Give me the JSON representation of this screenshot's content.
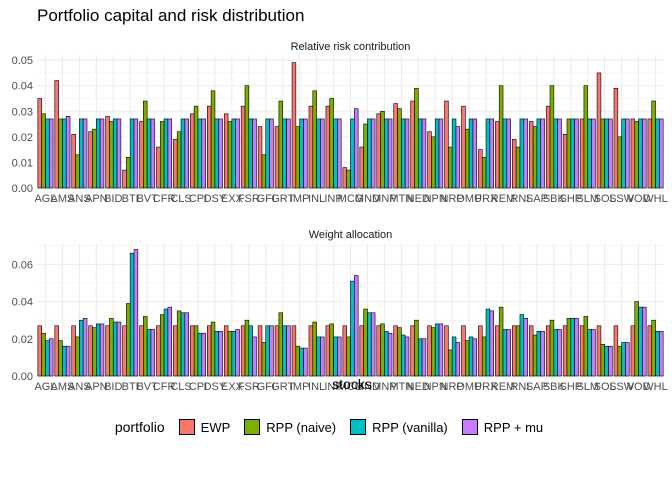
{
  "title": "Portfolio capital and risk distribution",
  "legend": {
    "title": "portfolio",
    "items": [
      {
        "name": "EWP",
        "color": "#F8766D"
      },
      {
        "name": "RPP (naive)",
        "color": "#7CAE00"
      },
      {
        "name": "RPP (vanilla)",
        "color": "#00BFC4"
      },
      {
        "name": "RPP + mu",
        "color": "#C77CFF"
      }
    ]
  },
  "chart_data": [
    {
      "type": "bar",
      "title": "Relative risk contribution",
      "xlabel": "",
      "ylabel": "",
      "ylim": [
        0,
        0.052
      ],
      "yticks": [
        "0.00",
        "0.01",
        "0.02",
        "0.03",
        "0.04",
        "0.05"
      ],
      "ytick_values": [
        0,
        0.01,
        0.02,
        0.03,
        0.04,
        0.05
      ],
      "grid": true,
      "categories": [
        "AGL",
        "AMS",
        "ANS",
        "APN",
        "BID",
        "BTI",
        "BVT",
        "CFR",
        "CLS",
        "CPI",
        "DSY",
        "EXX",
        "FSR",
        "GFI",
        "GRT",
        "IMP",
        "INL",
        "INP",
        "MCG",
        "MND",
        "MNP",
        "MTN",
        "NED",
        "NPN",
        "NRP",
        "OMU",
        "PRX",
        "REM",
        "RNI",
        "SAP",
        "SBK",
        "SHP",
        "SLM",
        "SOL",
        "SSW",
        "VOD",
        "WHL"
      ],
      "series": [
        {
          "name": "EWP",
          "values": [
            0.035,
            0.042,
            0.021,
            0.022,
            0.028,
            0.007,
            0.026,
            0.016,
            0.019,
            0.029,
            0.032,
            0.029,
            0.032,
            0.024,
            0.024,
            0.049,
            0.032,
            0.032,
            0.008,
            0.016,
            0.029,
            0.033,
            0.034,
            0.022,
            0.034,
            0.032,
            0.015,
            0.026,
            0.019,
            0.026,
            0.032,
            0.021,
            0.027,
            0.045,
            0.039,
            0.027,
            0.027
          ]
        },
        {
          "name": "RPP (naive)",
          "values": [
            0.029,
            0.027,
            0.013,
            0.023,
            0.026,
            0.012,
            0.034,
            0.026,
            0.022,
            0.032,
            0.038,
            0.026,
            0.04,
            0.013,
            0.034,
            0.024,
            0.038,
            0.035,
            0.007,
            0.025,
            0.03,
            0.031,
            0.039,
            0.02,
            0.016,
            0.023,
            0.012,
            0.04,
            0.016,
            0.024,
            0.04,
            0.027,
            0.04,
            0.027,
            0.02,
            0.026,
            0.034
          ]
        },
        {
          "name": "RPP (vanilla)",
          "values": [
            0.027,
            0.027,
            0.027,
            0.027,
            0.027,
            0.027,
            0.027,
            0.027,
            0.027,
            0.027,
            0.027,
            0.027,
            0.027,
            0.027,
            0.027,
            0.027,
            0.027,
            0.027,
            0.027,
            0.027,
            0.027,
            0.027,
            0.027,
            0.027,
            0.027,
            0.027,
            0.027,
            0.027,
            0.027,
            0.027,
            0.027,
            0.027,
            0.027,
            0.027,
            0.027,
            0.027,
            0.027
          ]
        },
        {
          "name": "RPP + mu",
          "values": [
            0.027,
            0.028,
            0.027,
            0.027,
            0.027,
            0.027,
            0.027,
            0.027,
            0.027,
            0.027,
            0.027,
            0.027,
            0.027,
            0.027,
            0.027,
            0.027,
            0.027,
            0.027,
            0.031,
            0.027,
            0.027,
            0.027,
            0.027,
            0.027,
            0.024,
            0.027,
            0.027,
            0.027,
            0.027,
            0.027,
            0.027,
            0.027,
            0.027,
            0.027,
            0.027,
            0.027,
            0.027
          ]
        }
      ]
    },
    {
      "type": "bar",
      "title": "Weight allocation",
      "xlabel": "stocks",
      "ylabel": "",
      "ylim": [
        0,
        0.0715
      ],
      "yticks": [
        "0.00",
        "0.02",
        "0.04",
        "0.06"
      ],
      "ytick_values": [
        0,
        0.02,
        0.04,
        0.06
      ],
      "grid": true,
      "categories": [
        "AGL",
        "AMS",
        "ANS",
        "APN",
        "BID",
        "BTI",
        "BVT",
        "CFR",
        "CLS",
        "CPI",
        "DSY",
        "EXX",
        "FSR",
        "GFI",
        "GRT",
        "IMP",
        "INL",
        "INP",
        "MCG",
        "MND",
        "MNP",
        "MTN",
        "NED",
        "NPN",
        "NRP",
        "OMU",
        "PRX",
        "REM",
        "RNI",
        "SAP",
        "SBK",
        "SHP",
        "SLM",
        "SOL",
        "SSW",
        "VOD",
        "WHL"
      ],
      "series": [
        {
          "name": "EWP",
          "values": [
            0.027,
            0.027,
            0.027,
            0.027,
            0.027,
            0.027,
            0.027,
            0.027,
            0.027,
            0.027,
            0.027,
            0.027,
            0.027,
            0.027,
            0.027,
            0.027,
            0.027,
            0.027,
            0.027,
            0.027,
            0.027,
            0.027,
            0.027,
            0.027,
            0.027,
            0.027,
            0.027,
            0.027,
            0.027,
            0.027,
            0.027,
            0.027,
            0.027,
            0.027,
            0.027,
            0.027,
            0.027
          ]
        },
        {
          "name": "RPP (naive)",
          "values": [
            0.023,
            0.019,
            0.021,
            0.026,
            0.031,
            0.039,
            0.032,
            0.033,
            0.035,
            0.027,
            0.029,
            0.024,
            0.03,
            0.018,
            0.034,
            0.016,
            0.029,
            0.028,
            0.021,
            0.036,
            0.028,
            0.026,
            0.03,
            0.026,
            0.014,
            0.019,
            0.021,
            0.037,
            0.027,
            0.022,
            0.03,
            0.031,
            0.032,
            0.017,
            0.016,
            0.04,
            0.03
          ]
        },
        {
          "name": "RPP (vanilla)",
          "values": [
            0.019,
            0.016,
            0.03,
            0.028,
            0.029,
            0.066,
            0.025,
            0.036,
            0.034,
            0.023,
            0.024,
            0.024,
            0.027,
            0.027,
            0.027,
            0.015,
            0.021,
            0.021,
            0.051,
            0.034,
            0.024,
            0.022,
            0.02,
            0.028,
            0.021,
            0.021,
            0.036,
            0.025,
            0.033,
            0.024,
            0.025,
            0.031,
            0.025,
            0.016,
            0.018,
            0.037,
            0.024
          ]
        },
        {
          "name": "RPP + mu",
          "values": [
            0.02,
            0.016,
            0.031,
            0.028,
            0.029,
            0.068,
            0.025,
            0.037,
            0.034,
            0.023,
            0.024,
            0.025,
            0.021,
            0.027,
            0.027,
            0.015,
            0.021,
            0.021,
            0.054,
            0.034,
            0.023,
            0.021,
            0.02,
            0.028,
            0.018,
            0.02,
            0.035,
            0.025,
            0.031,
            0.024,
            0.025,
            0.031,
            0.025,
            0.016,
            0.018,
            0.037,
            0.024
          ]
        }
      ]
    }
  ]
}
